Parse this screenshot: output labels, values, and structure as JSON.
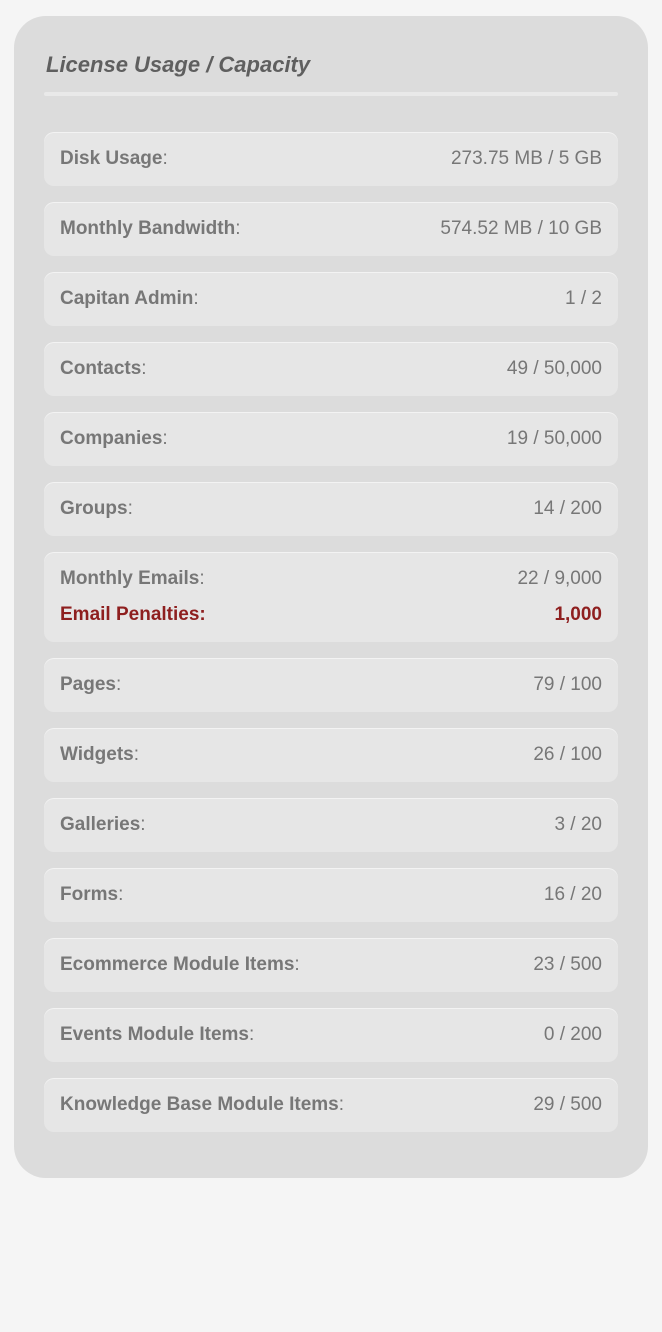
{
  "panel": {
    "title": "License Usage / Capacity",
    "background_color": "#dcdcdc",
    "card_color": "#e6e6e6",
    "text_color": "#777777",
    "alert_color": "#8e1f1f"
  },
  "cards": [
    {
      "rows": [
        {
          "label": "Disk Usage",
          "value": "273.75 MB / 5 GB"
        }
      ]
    },
    {
      "rows": [
        {
          "label": "Monthly Bandwidth",
          "value": "574.52 MB / 10 GB"
        }
      ]
    },
    {
      "rows": [
        {
          "label": "Capitan Admin",
          "value": "1 / 2"
        }
      ]
    },
    {
      "rows": [
        {
          "label": "Contacts",
          "value": "49 / 50,000"
        }
      ]
    },
    {
      "rows": [
        {
          "label": "Companies",
          "value": "19 / 50,000"
        }
      ]
    },
    {
      "rows": [
        {
          "label": "Groups",
          "value": "14 / 200"
        }
      ]
    },
    {
      "rows": [
        {
          "label": "Monthly Emails",
          "value": "22 / 9,000"
        },
        {
          "label": "Email Penalties",
          "value": "1,000",
          "alert": true,
          "label_colon_bold": true
        }
      ]
    },
    {
      "rows": [
        {
          "label": "Pages",
          "value": "79 / 100"
        }
      ]
    },
    {
      "rows": [
        {
          "label": "Widgets",
          "value": "26 / 100"
        }
      ]
    },
    {
      "rows": [
        {
          "label": "Galleries",
          "value": "3 / 20"
        }
      ]
    },
    {
      "rows": [
        {
          "label": "Forms",
          "value": "16 / 20"
        }
      ]
    },
    {
      "rows": [
        {
          "label": "Ecommerce Module Items",
          "value": "23 / 500"
        }
      ]
    },
    {
      "rows": [
        {
          "label": "Events Module Items",
          "value": "0 / 200"
        }
      ]
    },
    {
      "rows": [
        {
          "label": "Knowledge Base Module Items",
          "value": "29 / 500"
        }
      ]
    }
  ]
}
